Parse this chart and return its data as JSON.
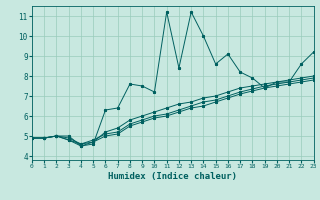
{
  "xlabel": "Humidex (Indice chaleur)",
  "xlim": [
    0,
    23
  ],
  "ylim": [
    3.8,
    11.5
  ],
  "yticks": [
    4,
    5,
    6,
    7,
    8,
    9,
    10,
    11
  ],
  "xticks": [
    0,
    1,
    2,
    3,
    4,
    5,
    6,
    7,
    8,
    9,
    10,
    11,
    12,
    13,
    14,
    15,
    16,
    17,
    18,
    19,
    20,
    21,
    22,
    23
  ],
  "bg_color": "#c8e8e0",
  "grid_color": "#99ccbb",
  "line_color": "#006060",
  "figsize": [
    3.2,
    2.0
  ],
  "dpi": 100,
  "lines": [
    {
      "x": [
        0,
        1,
        2,
        3,
        4,
        5,
        6,
        7,
        8,
        9,
        10,
        11,
        12,
        13,
        14,
        15,
        16,
        17,
        18,
        19,
        20,
        21,
        22,
        23
      ],
      "y": [
        4.9,
        4.9,
        5.0,
        5.0,
        4.5,
        4.6,
        6.3,
        6.4,
        7.6,
        7.5,
        7.2,
        11.2,
        8.4,
        11.2,
        10.0,
        8.6,
        9.1,
        8.2,
        7.9,
        7.4,
        7.7,
        7.7,
        8.6,
        9.2
      ]
    },
    {
      "x": [
        0,
        1,
        2,
        3,
        4,
        5,
        6,
        7,
        8,
        9,
        10,
        11,
        12,
        13,
        14,
        15,
        16,
        17,
        18,
        19,
        20,
        21,
        22,
        23
      ],
      "y": [
        4.9,
        4.9,
        5.0,
        4.8,
        4.5,
        4.7,
        5.2,
        5.4,
        5.8,
        6.0,
        6.2,
        6.4,
        6.6,
        6.7,
        6.9,
        7.0,
        7.2,
        7.4,
        7.5,
        7.6,
        7.7,
        7.8,
        7.9,
        8.0
      ]
    },
    {
      "x": [
        0,
        1,
        2,
        3,
        4,
        5,
        6,
        7,
        8,
        9,
        10,
        11,
        12,
        13,
        14,
        15,
        16,
        17,
        18,
        19,
        20,
        21,
        22,
        23
      ],
      "y": [
        4.9,
        4.9,
        5.0,
        4.9,
        4.6,
        4.8,
        5.1,
        5.2,
        5.6,
        5.8,
        6.0,
        6.1,
        6.3,
        6.5,
        6.7,
        6.8,
        7.0,
        7.2,
        7.35,
        7.5,
        7.6,
        7.7,
        7.8,
        7.9
      ]
    },
    {
      "x": [
        0,
        1,
        2,
        3,
        4,
        5,
        6,
        7,
        8,
        9,
        10,
        11,
        12,
        13,
        14,
        15,
        16,
        17,
        18,
        19,
        20,
        21,
        22,
        23
      ],
      "y": [
        4.9,
        4.9,
        5.0,
        4.8,
        4.6,
        4.7,
        5.0,
        5.1,
        5.5,
        5.7,
        5.9,
        6.0,
        6.2,
        6.4,
        6.5,
        6.7,
        6.9,
        7.1,
        7.25,
        7.4,
        7.5,
        7.6,
        7.7,
        7.8
      ]
    }
  ]
}
